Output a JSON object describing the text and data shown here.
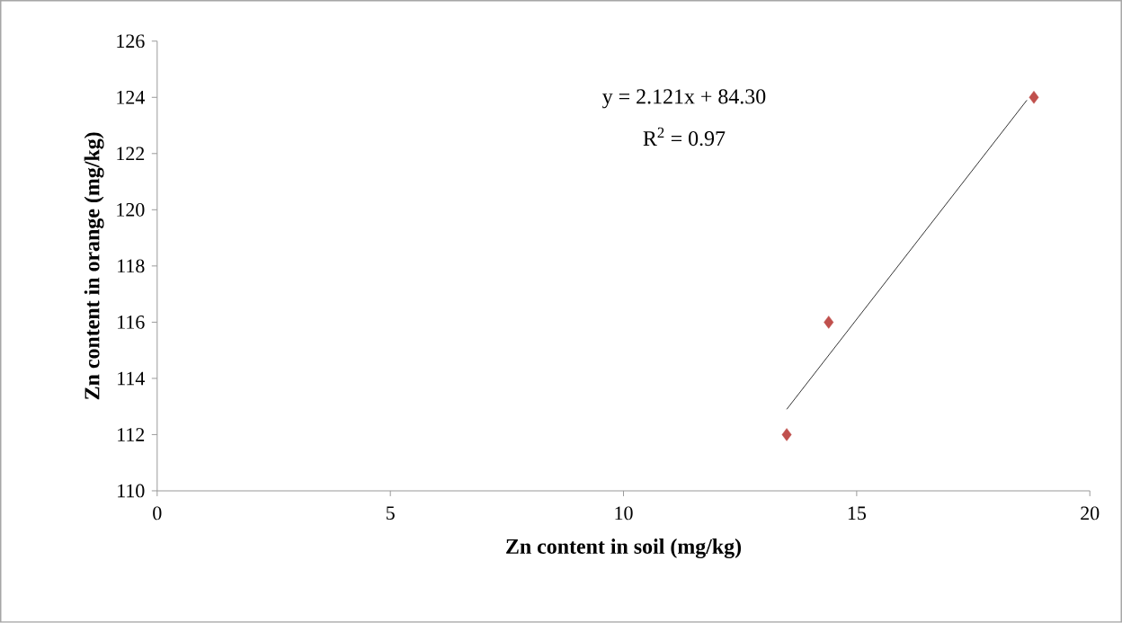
{
  "chart_data": {
    "type": "scatter",
    "xlabel": "Zn content in soil (mg/kg)",
    "ylabel": "Zn content in orange (mg/kg)",
    "series": [
      {
        "color": "#c0504d",
        "marker": "diamond",
        "x": [
          13.5,
          14.4,
          18.8
        ],
        "values": [
          112,
          116,
          124
        ]
      },
      {
        "type": "line",
        "color": "#000000",
        "marker": "none",
        "x": [
          13.5,
          18.65
        ],
        "values": [
          112.9,
          123.9
        ]
      }
    ],
    "annotations": [
      "y = 2.121x + 84.30",
      "R$^{2}$ = 0.97"
    ],
    "xlim": [
      0,
      20
    ],
    "ylim": [
      110,
      126
    ],
    "xticks": [
      0,
      5,
      10,
      15,
      20
    ],
    "yticks": [
      110,
      112,
      114,
      116,
      118,
      120,
      122,
      124,
      126
    ],
    "grid": false
  }
}
